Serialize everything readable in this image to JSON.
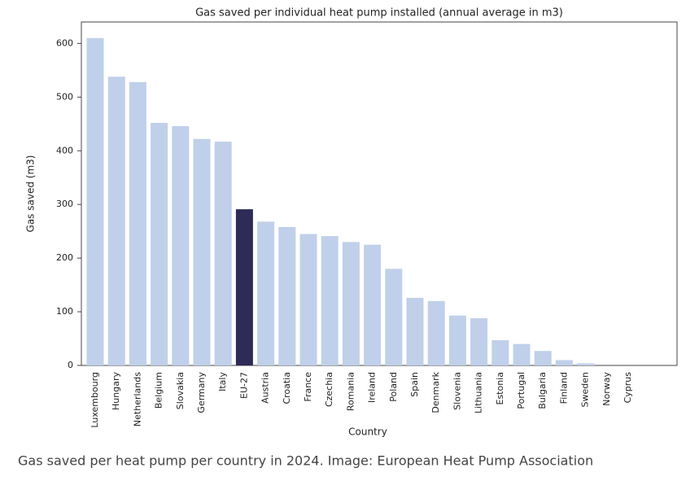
{
  "chart_data": {
    "type": "bar",
    "title": "Gas saved per individual heat pump installed (annual average in m3)",
    "x_label": "Country",
    "y_label": "Gas saved (m3)",
    "categories": [
      "Luxembourg",
      "Hungary",
      "Netherlands",
      "Belgium",
      "Slovakia",
      "Germany",
      "Italy",
      "EU-27",
      "Austria",
      "Croatia",
      "France",
      "Czechia",
      "Romania",
      "Ireland",
      "Poland",
      "Spain",
      "Denmark",
      "Slovenia",
      "Lithuania",
      "Estonia",
      "Portugal",
      "Bulgaria",
      "Finland",
      "Sweden",
      "Norway",
      "Cyprus"
    ],
    "values": [
      610,
      538,
      528,
      452,
      446,
      422,
      417,
      291,
      268,
      258,
      245,
      241,
      230,
      225,
      180,
      126,
      120,
      93,
      88,
      47,
      40,
      27,
      10,
      4,
      0,
      0
    ],
    "colors": [
      "#c0d0ea",
      "#c0d0ea",
      "#c0d0ea",
      "#c0d0ea",
      "#c0d0ea",
      "#c0d0ea",
      "#c0d0ea",
      "#2e2b57",
      "#c0d0ea",
      "#c0d0ea",
      "#c0d0ea",
      "#c0d0ea",
      "#c0d0ea",
      "#c0d0ea",
      "#c0d0ea",
      "#c0d0ea",
      "#c0d0ea",
      "#c0d0ea",
      "#c0d0ea",
      "#c0d0ea",
      "#c0d0ea",
      "#c0d0ea",
      "#c0d0ea",
      "#c0d0ea",
      "#c0d0ea",
      "#c0d0ea"
    ],
    "ylim": [
      0,
      640
    ],
    "yticks": [
      0,
      100,
      200,
      300,
      400,
      500,
      600
    ],
    "grid": false
  },
  "caption": "Gas saved per heat pump per country in 2024. Image: European Heat Pump Association"
}
